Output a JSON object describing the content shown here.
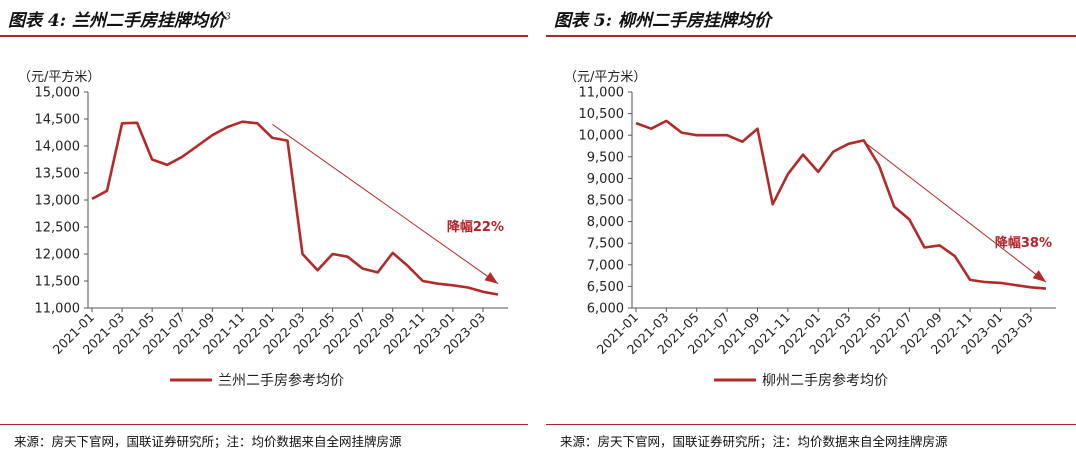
{
  "left": {
    "title": "图表 4:  兰州二手房挂牌均价",
    "title_sup": "3",
    "source": "来源：房天下官网，国联证券研究所；注：均价数据来自全网挂牌房源"
  },
  "right": {
    "title": "图表 5:  柳州二手房挂牌均价",
    "source": "来源：房天下官网，国联证券研究所；注：均价数据来自全网挂牌房源"
  },
  "colors": {
    "accent": "#b0242a",
    "line": "#b22a2a"
  },
  "chart_data": [
    {
      "type": "line",
      "ylabel": "（元/平方米）",
      "ylim": [
        11000,
        15000
      ],
      "yticks": [
        11000,
        11500,
        12000,
        12500,
        13000,
        13500,
        14000,
        14500,
        15000
      ],
      "ytick_labels": [
        "11,000",
        "11,500",
        "12,000",
        "12,500",
        "13,000",
        "13,500",
        "14,000",
        "14,500",
        "15,000"
      ],
      "xtick_labels": [
        "2021-01",
        "2021-03",
        "2021-05",
        "2021-07",
        "2021-09",
        "2021-11",
        "2022-01",
        "2022-03",
        "2022-05",
        "2022-07",
        "2022-09",
        "2022-11",
        "2023-01",
        "2023-03"
      ],
      "x": [
        "2021-01",
        "2021-02",
        "2021-03",
        "2021-04",
        "2021-05",
        "2021-06",
        "2021-07",
        "2021-08",
        "2021-09",
        "2021-10",
        "2021-11",
        "2021-12",
        "2022-01",
        "2022-02",
        "2022-03",
        "2022-04",
        "2022-05",
        "2022-06",
        "2022-07",
        "2022-08",
        "2022-09",
        "2022-10",
        "2022-11",
        "2022-12",
        "2023-01",
        "2023-02",
        "2023-03",
        "2023-04"
      ],
      "series": [
        {
          "name": "兰州二手房参考均价",
          "values": [
            13020,
            13170,
            14420,
            14430,
            13750,
            13650,
            13800,
            14000,
            14200,
            14350,
            14450,
            14420,
            14150,
            14100,
            12000,
            11700,
            12000,
            11950,
            11730,
            11660,
            12020,
            11780,
            11500,
            11450,
            11420,
            11380,
            11300,
            11250
          ]
        }
      ],
      "annotation": {
        "text": "降幅22%",
        "from": [
          "2022-01",
          14400
        ],
        "to": [
          "2023-04",
          11450
        ]
      },
      "legend": "bottom-center",
      "grid": false
    },
    {
      "type": "line",
      "ylabel": "（元/平方米）",
      "ylim": [
        6000,
        11000
      ],
      "yticks": [
        6000,
        6500,
        7000,
        7500,
        8000,
        8500,
        9000,
        9500,
        10000,
        10500,
        11000
      ],
      "ytick_labels": [
        "6,000",
        "6,500",
        "7,000",
        "7,500",
        "8,000",
        "8,500",
        "9,000",
        "9,500",
        "10,000",
        "10,500",
        "11,000"
      ],
      "xtick_labels": [
        "2021-01",
        "2021-03",
        "2021-05",
        "2021-07",
        "2021-09",
        "2021-11",
        "2022-01",
        "2022-03",
        "2022-05",
        "2022-07",
        "2022-09",
        "2022-11",
        "2023-01",
        "2023-03"
      ],
      "x": [
        "2021-01",
        "2021-02",
        "2021-03",
        "2021-04",
        "2021-05",
        "2021-06",
        "2021-07",
        "2021-08",
        "2021-09",
        "2021-10",
        "2021-11",
        "2021-12",
        "2022-01",
        "2022-02",
        "2022-03",
        "2022-04",
        "2022-05",
        "2022-06",
        "2022-07",
        "2022-08",
        "2022-09",
        "2022-10",
        "2022-11",
        "2022-12",
        "2023-01",
        "2023-02",
        "2023-03",
        "2023-04"
      ],
      "series": [
        {
          "name": "柳州二手房参考均价",
          "values": [
            10280,
            10150,
            10330,
            10060,
            10000,
            10000,
            10000,
            9850,
            10150,
            8400,
            9100,
            9550,
            9150,
            9620,
            9800,
            9880,
            9300,
            8350,
            8050,
            7400,
            7450,
            7200,
            6650,
            6600,
            6580,
            6530,
            6480,
            6450
          ]
        }
      ],
      "annotation": {
        "text": "降幅38%",
        "from": [
          "2022-04",
          9850
        ],
        "to": [
          "2023-04",
          6600
        ]
      },
      "legend": "bottom-center",
      "grid": false
    }
  ]
}
